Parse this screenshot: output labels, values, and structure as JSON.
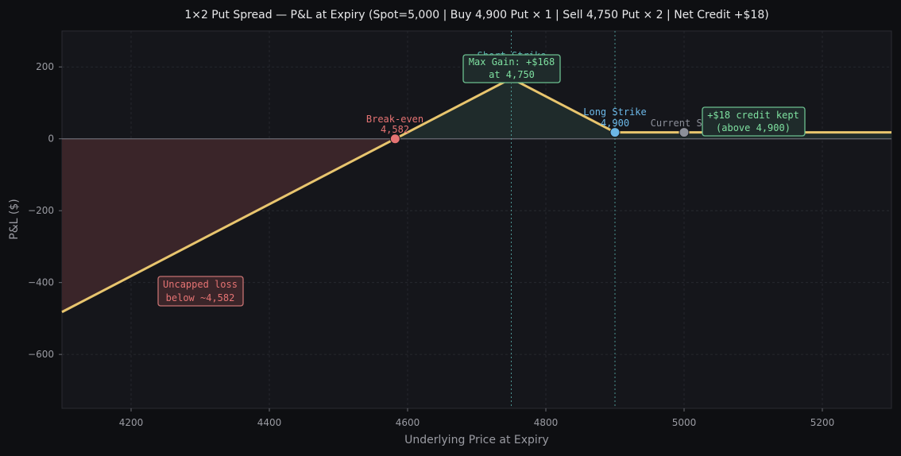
{
  "chart_data": {
    "type": "line",
    "title": "1×2 Put Spread — P&L at Expiry  (Spot=5,000 | Buy 4,900 Put × 1 | Sell 4,750 Put × 2 | Net Credit +$18)",
    "xlabel": "Underlying Price at Expiry",
    "ylabel": "P&L ($)",
    "xlim": [
      4100,
      5300
    ],
    "ylim": [
      -750,
      300
    ],
    "x_ticks": [
      4200,
      4400,
      4600,
      4800,
      5000,
      5200
    ],
    "y_ticks": [
      200,
      0,
      -200,
      -400,
      -600
    ],
    "grid": true,
    "series": [
      {
        "x": [
          4100,
          4582,
          4750,
          4900,
          5300
        ],
        "y": [
          -482,
          0,
          168,
          18,
          18
        ]
      }
    ],
    "reference_lines_x": [
      4750,
      4900
    ],
    "markers": [
      {
        "key": "breakeven",
        "x": 4582,
        "y": 0
      },
      {
        "key": "max_gain",
        "x": 4750,
        "y": 168
      },
      {
        "key": "long_strike",
        "x": 4900,
        "y": 18
      },
      {
        "key": "spot",
        "x": 5000,
        "y": 18
      }
    ],
    "annotations": {
      "breakeven": {
        "line1": "Break-even",
        "line2": "4,582"
      },
      "short_strike": "Short Strike",
      "max_gain": {
        "line1": "Max Gain: +$168",
        "line2": "at 4,750"
      },
      "long_strike": {
        "line1": "Long Strike",
        "line2": "4,900"
      },
      "spot": "Current Spot",
      "credit": {
        "line1": "+$18 credit kept",
        "line2": "(above 4,900)"
      },
      "loss": {
        "line1": "Uncapped loss",
        "line2": "below ~4,582"
      }
    },
    "colors": {
      "line": "#e8c56e",
      "loss_fill": "#3a2529",
      "gain_fill": "#1f2b2b",
      "breakeven": "#e57373",
      "max_gain": "#7ee0a0",
      "long_strike": "#6cb8e8",
      "spot": "#8c8f99",
      "ref_line": "#5ab4b0"
    }
  }
}
